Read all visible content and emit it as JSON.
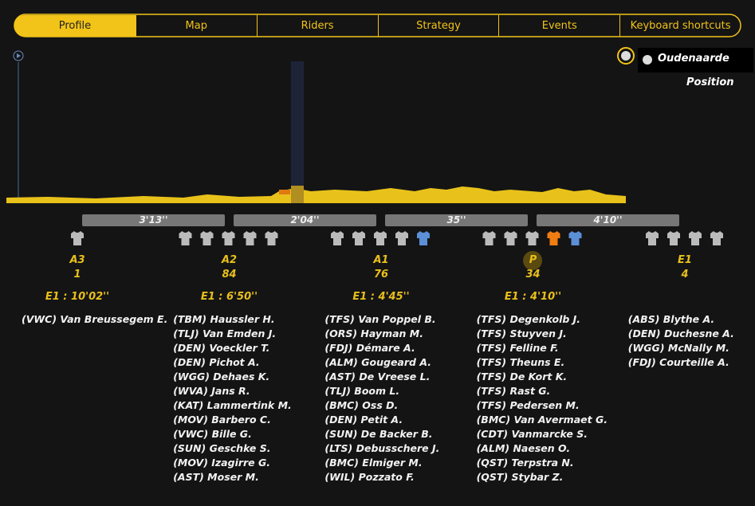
{
  "tabs": [
    "Profile",
    "Map",
    "Riders",
    "Strategy",
    "Events",
    "Keyboard shortcuts"
  ],
  "finish": "Oudenaarde",
  "position_label": "Position",
  "gaps": [
    "3'13''",
    "2'04''",
    "35''",
    "4'10''"
  ],
  "groups": [
    {
      "label": "A3",
      "count": 1,
      "time": "E1 : 10'02''",
      "riders": [
        "(VWC) Van Breussegem E."
      ]
    },
    {
      "label": "A2",
      "count": 84,
      "time": "E1 : 6'50''",
      "riders": [
        "(TBM) Haussler H.",
        "(TLJ) Van Emden J.",
        "(DEN) Voeckler T.",
        "(DEN) Pichot A.",
        "(WGG) Dehaes K.",
        "(WVA) Jans R.",
        "(KAT) Lammertink M.",
        "(MOV) Barbero C.",
        "(VWC) Bille G.",
        "(SUN) Geschke S.",
        "(MOV) Izagirre G.",
        "(AST) Moser M."
      ]
    },
    {
      "label": "A1",
      "count": 76,
      "time": "E1 : 4'45''",
      "riders": [
        "(TFS) Van Poppel B.",
        "(ORS) Hayman M.",
        "(FDJ) Démare A.",
        "(ALM) Gougeard A.",
        "(AST) De Vreese L.",
        "(TLJ) Boom L.",
        "(BMC) Oss D.",
        "(DEN) Petit A.",
        "(SUN) De Backer B.",
        "(LTS) Debusschere J.",
        "(BMC) Elmiger M.",
        "(WIL) Pozzato F."
      ]
    },
    {
      "label": "P",
      "count": 34,
      "time": "E1 : 4'10''",
      "riders": [
        "(TFS) Degenkolb J.",
        "(TFS) Stuyven J.",
        "(TFS) Felline F.",
        "(TFS) Theuns E.",
        "(TFS) De Kort K.",
        "(TFS) Rast G.",
        "(TFS) Pedersen M.",
        "(BMC) Van Avermaet G.",
        "(CDT) Vanmarcke S.",
        "(ALM) Naesen O.",
        "(QST) Terpstra N.",
        "(QST) Stybar Z."
      ]
    },
    {
      "label": "E1",
      "count": 4,
      "riders": [
        "(ABS) Blythe A.",
        "(DEN) Duchesne A.",
        "(WGG) McNally M.",
        "(FDJ) Courteille A."
      ]
    }
  ]
}
